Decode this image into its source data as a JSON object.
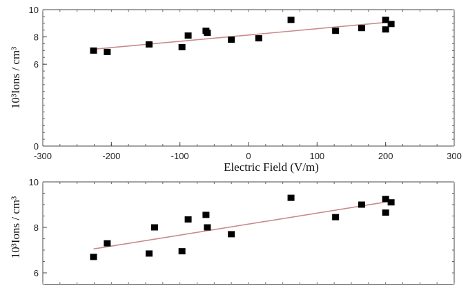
{
  "chart_data": [
    {
      "type": "scatter",
      "title": "",
      "xlabel": "Electric Field (V/m)",
      "ylabel": "10³Ions / cm³",
      "xlim": [
        -300,
        300
      ],
      "ylim": [
        0,
        10
      ],
      "x_ticks": [
        -300,
        -200,
        -100,
        0,
        100,
        200,
        300
      ],
      "y_ticks": [
        0,
        6,
        8,
        10
      ],
      "grid": false,
      "series": [
        {
          "points": [
            {
              "x": -226,
              "y": 7.0
            },
            {
              "x": -206,
              "y": 6.9
            },
            {
              "x": -145,
              "y": 7.45
            },
            {
              "x": -97,
              "y": 7.25
            },
            {
              "x": -88,
              "y": 8.1
            },
            {
              "x": -62,
              "y": 8.45
            },
            {
              "x": -60,
              "y": 8.3
            },
            {
              "x": -25,
              "y": 7.8
            },
            {
              "x": 15,
              "y": 7.9
            },
            {
              "x": 62,
              "y": 9.25
            },
            {
              "x": 127,
              "y": 8.45
            },
            {
              "x": 165,
              "y": 8.65
            },
            {
              "x": 200,
              "y": 9.25
            },
            {
              "x": 200,
              "y": 8.55
            },
            {
              "x": 208,
              "y": 8.95
            }
          ]
        }
      ],
      "fit_line": {
        "x": [
          -226,
          208
        ],
        "y": [
          7.1,
          9.1
        ]
      },
      "fit_color": "#c98a8a"
    },
    {
      "type": "scatter",
      "title": "",
      "xlabel": "",
      "ylabel": "10³Ions / cm³",
      "xlim": [
        -300,
        300
      ],
      "ylim": [
        5.5,
        10
      ],
      "x_ticks": [],
      "y_ticks": [
        6,
        8,
        10
      ],
      "grid": false,
      "series": [
        {
          "points": [
            {
              "x": -226,
              "y": 6.7
            },
            {
              "x": -206,
              "y": 7.3
            },
            {
              "x": -145,
              "y": 6.85
            },
            {
              "x": -137,
              "y": 8.0
            },
            {
              "x": -97,
              "y": 6.95
            },
            {
              "x": -88,
              "y": 8.35
            },
            {
              "x": -62,
              "y": 8.55
            },
            {
              "x": -60,
              "y": 8.0
            },
            {
              "x": -25,
              "y": 7.7
            },
            {
              "x": 62,
              "y": 9.3
            },
            {
              "x": 127,
              "y": 8.45
            },
            {
              "x": 165,
              "y": 9.0
            },
            {
              "x": 200,
              "y": 9.25
            },
            {
              "x": 200,
              "y": 8.65
            },
            {
              "x": 208,
              "y": 9.1
            }
          ]
        }
      ],
      "fit_line": {
        "x": [
          -226,
          208
        ],
        "y": [
          7.05,
          9.15
        ]
      },
      "fit_color": "#c98a8a"
    }
  ]
}
